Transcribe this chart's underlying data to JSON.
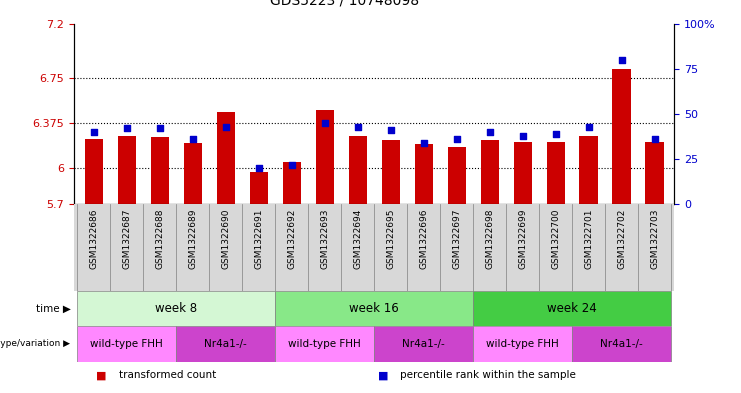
{
  "title": "GDS5223 / 10748098",
  "samples": [
    "GSM1322686",
    "GSM1322687",
    "GSM1322688",
    "GSM1322689",
    "GSM1322690",
    "GSM1322691",
    "GSM1322692",
    "GSM1322693",
    "GSM1322694",
    "GSM1322695",
    "GSM1322696",
    "GSM1322697",
    "GSM1322698",
    "GSM1322699",
    "GSM1322700",
    "GSM1322701",
    "GSM1322702",
    "GSM1322703"
  ],
  "red_values": [
    6.24,
    6.27,
    6.26,
    6.21,
    6.47,
    5.97,
    6.05,
    6.48,
    6.27,
    6.23,
    6.2,
    6.18,
    6.23,
    6.22,
    6.22,
    6.27,
    6.82,
    6.22
  ],
  "blue_values": [
    40,
    42,
    42,
    36,
    43,
    20,
    22,
    45,
    43,
    41,
    34,
    36,
    40,
    38,
    39,
    43,
    80,
    36
  ],
  "ymin": 5.7,
  "ymax": 7.2,
  "yright_min": 0,
  "yright_max": 100,
  "yticks_left": [
    5.7,
    6.0,
    6.375,
    6.75,
    7.2
  ],
  "ytick_labels_left": [
    "5.7",
    "6",
    "6.375",
    "6.75",
    "7.2"
  ],
  "yticks_right": [
    0,
    25,
    50,
    75,
    100
  ],
  "ytick_labels_right": [
    "0",
    "25",
    "50",
    "75",
    "100%"
  ],
  "grid_lines": [
    6.0,
    6.375,
    6.75
  ],
  "time_groups": [
    {
      "label": "week 8",
      "start": 0,
      "end": 6,
      "color": "#d4f7d4"
    },
    {
      "label": "week 16",
      "start": 6,
      "end": 12,
      "color": "#88e888"
    },
    {
      "label": "week 24",
      "start": 12,
      "end": 18,
      "color": "#44cc44"
    }
  ],
  "genotype_groups": [
    {
      "label": "wild-type FHH",
      "start": 0,
      "end": 3,
      "color": "#ff88ff"
    },
    {
      "label": "Nr4a1-/-",
      "start": 3,
      "end": 6,
      "color": "#cc44cc"
    },
    {
      "label": "wild-type FHH",
      "start": 6,
      "end": 9,
      "color": "#ff88ff"
    },
    {
      "label": "Nr4a1-/-",
      "start": 9,
      "end": 12,
      "color": "#cc44cc"
    },
    {
      "label": "wild-type FHH",
      "start": 12,
      "end": 15,
      "color": "#ff88ff"
    },
    {
      "label": "Nr4a1-/-",
      "start": 15,
      "end": 18,
      "color": "#cc44cc"
    }
  ],
  "bar_color": "#cc0000",
  "dot_color": "#0000cc",
  "xtick_bg": "#d8d8d8",
  "legend_items": [
    {
      "color": "#cc0000",
      "label": "transformed count"
    },
    {
      "color": "#0000cc",
      "label": "percentile rank within the sample"
    }
  ]
}
